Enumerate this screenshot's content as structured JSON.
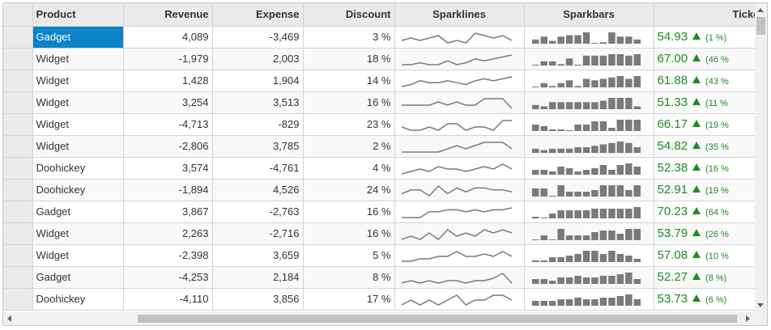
{
  "grid": {
    "columns": {
      "product": "Product",
      "revenue": "Revenue",
      "expense": "Expense",
      "discount": "Discount",
      "sparklines": "Sparklines",
      "sparkbars": "Sparkbars",
      "ticker": "Ticker"
    },
    "selected_row": 0,
    "rows": [
      {
        "product": "Gadget",
        "revenue": "4,089",
        "expense": "-3,469",
        "discount": "3 %",
        "ticker": "54.93",
        "change": "(1 %)",
        "spark": [
          5,
          6,
          5,
          6,
          7,
          4,
          5,
          4,
          8,
          7,
          6,
          7,
          5
        ],
        "bars": [
          3,
          5,
          2,
          5,
          6,
          6,
          8,
          0,
          1,
          8,
          5,
          5,
          3
        ]
      },
      {
        "product": "Widget",
        "revenue": "-1,979",
        "expense": "2,003",
        "discount": "18 %",
        "ticker": "67.00",
        "change": "(46 %",
        "spark": [
          3,
          3,
          4,
          3,
          3,
          5,
          3,
          4,
          6,
          5,
          6,
          7,
          8
        ],
        "bars": [
          0,
          3,
          3,
          1,
          5,
          0,
          7,
          7,
          7,
          8,
          8,
          7,
          8
        ]
      },
      {
        "product": "Widget",
        "revenue": "1,428",
        "expense": "1,904",
        "discount": "14 %",
        "ticker": "61.88",
        "change": "(43 %",
        "spark": [
          3,
          4,
          6,
          5,
          5,
          6,
          5,
          4,
          6,
          7,
          6,
          7,
          8
        ],
        "bars": [
          0,
          3,
          1,
          3,
          5,
          1,
          6,
          5,
          6,
          7,
          8,
          6,
          8
        ]
      },
      {
        "product": "Widget",
        "revenue": "3,254",
        "expense": "3,513",
        "discount": "16 %",
        "ticker": "51.33",
        "change": "(11 %",
        "spark": [
          4,
          4,
          4,
          4,
          5,
          4,
          5,
          4,
          4,
          6,
          6,
          6,
          3
        ],
        "bars": [
          3,
          2,
          5,
          5,
          5,
          5,
          5,
          5,
          6,
          8,
          8,
          8,
          2
        ]
      },
      {
        "product": "Widget",
        "revenue": "-4,713",
        "expense": "-829",
        "discount": "23 %",
        "ticker": "66.17",
        "change": "(19 %",
        "spark": [
          5,
          4,
          4,
          5,
          4,
          6,
          6,
          4,
          5,
          5,
          4,
          7,
          7
        ],
        "bars": [
          4,
          3,
          1,
          1,
          0,
          4,
          4,
          6,
          6,
          2,
          7,
          7,
          7
        ]
      },
      {
        "product": "Widget",
        "revenue": "-2,806",
        "expense": "3,785",
        "discount": "2 %",
        "ticker": "54.82",
        "change": "(35 %",
        "spark": [
          4,
          4,
          4,
          4,
          4,
          5,
          6,
          5,
          6,
          7,
          7,
          7,
          5
        ],
        "bars": [
          3,
          2,
          3,
          3,
          3,
          4,
          4,
          5,
          6,
          7,
          8,
          7,
          4
        ]
      },
      {
        "product": "Doohickey",
        "revenue": "3,574",
        "expense": "-4,761",
        "discount": "4 %",
        "ticker": "52.38",
        "change": "(16 %",
        "spark": [
          4,
          5,
          6,
          5,
          7,
          6,
          6,
          5,
          6,
          7,
          6,
          8,
          6
        ],
        "bars": [
          3,
          3,
          2,
          5,
          4,
          2,
          3,
          4,
          6,
          3,
          6,
          7,
          5
        ]
      },
      {
        "product": "Doohickey",
        "revenue": "-1,894",
        "expense": "4,526",
        "discount": "24 %",
        "ticker": "52.91",
        "change": "(19 %",
        "spark": [
          4,
          6,
          6,
          3,
          8,
          4,
          7,
          5,
          7,
          7,
          6,
          6,
          5
        ],
        "bars": [
          5,
          5,
          0,
          7,
          3,
          3,
          3,
          4,
          7,
          7,
          7,
          4,
          7
        ]
      },
      {
        "product": "Gadget",
        "revenue": "3,867",
        "expense": "-2,763",
        "discount": "16 %",
        "ticker": "70.23",
        "change": "(64 %",
        "spark": [
          3,
          3,
          3,
          6,
          6,
          7,
          7,
          6,
          7,
          6,
          7,
          7,
          8
        ],
        "bars": [
          1,
          0,
          3,
          5,
          5,
          5,
          5,
          6,
          6,
          6,
          6,
          6,
          7
        ]
      },
      {
        "product": "Widget",
        "revenue": "2,263",
        "expense": "-2,716",
        "discount": "16 %",
        "ticker": "53.79",
        "change": "(26 %",
        "spark": [
          4,
          5,
          4,
          6,
          4,
          7,
          5,
          6,
          5,
          7,
          6,
          7,
          6
        ],
        "bars": [
          0,
          3,
          0,
          7,
          3,
          3,
          3,
          5,
          6,
          6,
          4,
          7,
          7
        ]
      },
      {
        "product": "Widget",
        "revenue": "-2,398",
        "expense": "3,659",
        "discount": "5 %",
        "ticker": "57.08",
        "change": "(10 %",
        "spark": [
          3,
          3,
          4,
          4,
          5,
          5,
          7,
          5,
          5,
          6,
          5,
          7,
          5
        ],
        "bars": [
          1,
          1,
          3,
          3,
          4,
          5,
          7,
          7,
          5,
          7,
          5,
          4,
          2
        ]
      },
      {
        "product": "Gadget",
        "revenue": "-4,253",
        "expense": "2,184",
        "discount": "8 %",
        "ticker": "52.27",
        "change": "(8 %)",
        "spark": [
          4,
          5,
          4,
          5,
          4,
          5,
          5,
          4,
          5,
          5,
          6,
          8,
          4
        ],
        "bars": [
          3,
          3,
          2,
          4,
          4,
          5,
          4,
          4,
          5,
          5,
          6,
          7,
          3
        ]
      },
      {
        "product": "Doohickey",
        "revenue": "-4,110",
        "expense": "3,856",
        "discount": "17 %",
        "ticker": "53.73",
        "change": "(6 %)",
        "spark": [
          4,
          5,
          4,
          5,
          4,
          5,
          6,
          4,
          5,
          5,
          6,
          6,
          5
        ],
        "bars": [
          3,
          3,
          3,
          4,
          4,
          5,
          4,
          4,
          5,
          5,
          6,
          7,
          4
        ]
      }
    ]
  }
}
